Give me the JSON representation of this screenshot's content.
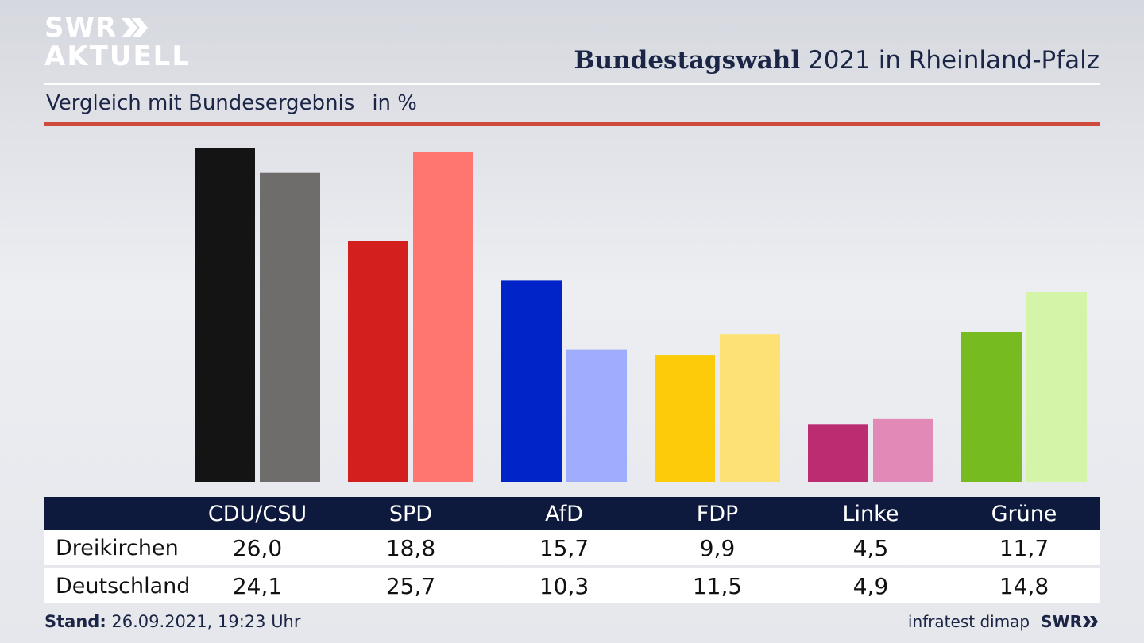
{
  "brand": {
    "logo_line1": "SWR",
    "logo_line2": "AKTUELL",
    "credit_source": "infratest dimap",
    "credit_brand": "SWR"
  },
  "header": {
    "title_bold": "Bundestagswahl",
    "title_rest": "2021 in Rheinland-Pfalz",
    "subtitle": "Vergleich mit Bundesergebnis",
    "unit": "in %"
  },
  "footer": {
    "stand_label": "Stand:",
    "stand_value": "26.09.2021, 19:23 Uhr"
  },
  "colors": {
    "header_bg": "#0e1a3d",
    "accent_red": "#cf4a3c",
    "parties": [
      {
        "local": "#141414",
        "national": "#6e6d6b"
      },
      {
        "local": "#d41f1f",
        "national": "#ff7670"
      },
      {
        "local": "#0024c8",
        "national": "#9fadff"
      },
      {
        "local": "#fecb0a",
        "national": "#fde175"
      },
      {
        "local": "#bc2c70",
        "national": "#e18ab8"
      },
      {
        "local": "#76bb1f",
        "national": "#d4f5a8"
      }
    ]
  },
  "chart_data": {
    "type": "bar",
    "title": "Bundestagswahl 2021 in Rheinland-Pfalz",
    "subtitle": "Vergleich mit Bundesergebnis in %",
    "categories": [
      "CDU/CSU",
      "SPD",
      "AfD",
      "FDP",
      "Linke",
      "Grüne"
    ],
    "series": [
      {
        "name": "Dreikirchen",
        "values": [
          "26,0",
          "18,8",
          "15,7",
          "9,9",
          "4,5",
          "11,7"
        ]
      },
      {
        "name": "Deutschland",
        "values": [
          "24,1",
          "25,7",
          "10,3",
          "11,5",
          "4,9",
          "14,8"
        ]
      }
    ],
    "ylim": [
      0,
      26
    ]
  }
}
